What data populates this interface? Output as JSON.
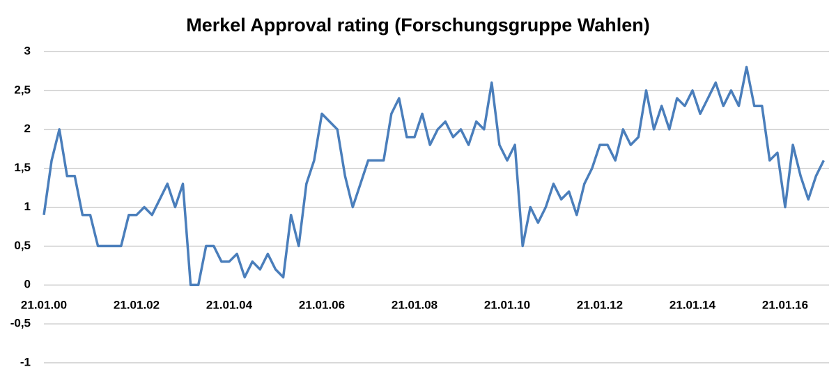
{
  "chart_data": {
    "type": "line",
    "title": "Merkel Approval rating (Forschungsgruppe Wahlen)",
    "categories": [
      "21.01.00",
      null,
      null,
      null,
      null,
      null,
      null,
      null,
      null,
      null,
      null,
      null,
      "21.01.02",
      null,
      null,
      null,
      null,
      null,
      null,
      null,
      null,
      null,
      null,
      null,
      "21.01.04",
      null,
      null,
      null,
      null,
      null,
      null,
      null,
      null,
      null,
      null,
      null,
      "21.01.06",
      null,
      null,
      null,
      null,
      null,
      null,
      null,
      null,
      null,
      null,
      null,
      "21.01.08",
      null,
      null,
      null,
      null,
      null,
      null,
      null,
      null,
      null,
      null,
      null,
      "21.01.10",
      null,
      null,
      null,
      null,
      null,
      null,
      null,
      null,
      null,
      null,
      null,
      "21.01.12",
      null,
      null,
      null,
      null,
      null,
      null,
      null,
      null,
      null,
      null,
      null,
      "21.01.14",
      null,
      null,
      null,
      null,
      null,
      null,
      null,
      null,
      null,
      null,
      null,
      "21.01.16",
      null,
      null,
      null,
      null,
      null
    ],
    "series": [
      {
        "name": "Approval rating",
        "color": "#4a7ebb",
        "values": [
          0.9,
          1.6,
          2.0,
          1.4,
          1.4,
          0.9,
          0.9,
          0.5,
          0.5,
          0.5,
          0.5,
          0.9,
          0.9,
          1.0,
          0.9,
          1.1,
          1.3,
          1.0,
          1.3,
          0.0,
          0.0,
          0.5,
          0.5,
          0.3,
          0.3,
          0.4,
          0.1,
          0.3,
          0.2,
          0.4,
          0.2,
          0.1,
          0.9,
          0.5,
          1.3,
          1.6,
          2.2,
          2.1,
          2.0,
          1.4,
          1.0,
          1.3,
          1.6,
          1.6,
          1.6,
          2.2,
          2.4,
          1.9,
          1.9,
          2.2,
          1.8,
          2.0,
          2.1,
          1.9,
          2.0,
          1.8,
          2.1,
          2.0,
          2.6,
          1.8,
          1.6,
          1.8,
          0.5,
          1.0,
          0.8,
          1.0,
          1.3,
          1.1,
          1.2,
          0.9,
          1.3,
          1.5,
          1.8,
          1.8,
          1.6,
          2.0,
          1.8,
          1.9,
          2.5,
          2.0,
          2.3,
          2.0,
          2.4,
          2.3,
          2.5,
          2.2,
          2.4,
          2.6,
          2.3,
          2.5,
          2.3,
          2.8,
          2.3,
          2.3,
          1.6,
          1.7,
          1.0,
          1.8,
          1.4,
          1.1,
          1.4,
          1.6
        ]
      }
    ],
    "ylim": [
      -1,
      3
    ],
    "yticks": [
      -1,
      {
        "value": -0.5,
        "label": "-0,5"
      },
      0,
      {
        "value": 0.5,
        "label": "0,5"
      },
      1,
      {
        "value": 1.5,
        "label": "1,5"
      },
      2,
      {
        "value": 2.5,
        "label": "2,5"
      },
      3
    ],
    "grid": true
  }
}
